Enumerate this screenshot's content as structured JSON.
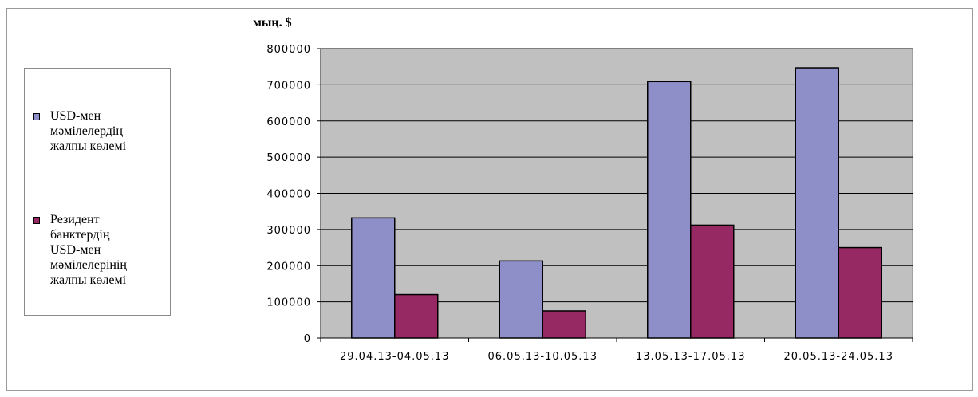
{
  "chart_data": {
    "type": "bar",
    "unit_label": "мың. $",
    "categories": [
      "29.04.13-04.05.13",
      "06.05.13-10.05.13",
      "13.05.13-17.05.13",
      "20.05.13-24.05.13"
    ],
    "series": [
      {
        "name": "USD-мен мәмілелердің жалпы көлемі",
        "color": "#8E8EC8",
        "values": [
          332000,
          213000,
          709000,
          747000
        ]
      },
      {
        "name": "Резидент банктердің USD-мен мәмілелерінің жалпы көлемі",
        "color": "#962863",
        "values": [
          120000,
          75000,
          312000,
          250000
        ]
      }
    ],
    "ylim": [
      0,
      800000
    ],
    "yticks": [
      "0",
      "100000",
      "200000",
      "300000",
      "400000",
      "500000",
      "600000",
      "700000",
      "800000"
    ],
    "grid": true,
    "legend_position": "left",
    "plot_background": "#C0C0C0"
  },
  "legend": {
    "items": [
      {
        "label": "USD-мен\nмәмілелердің\nжалпы көлемі"
      },
      {
        "label": "Резидент\nбанктердің\nUSD-мен\nмәмілелерінің\nжалпы көлемі"
      }
    ]
  }
}
